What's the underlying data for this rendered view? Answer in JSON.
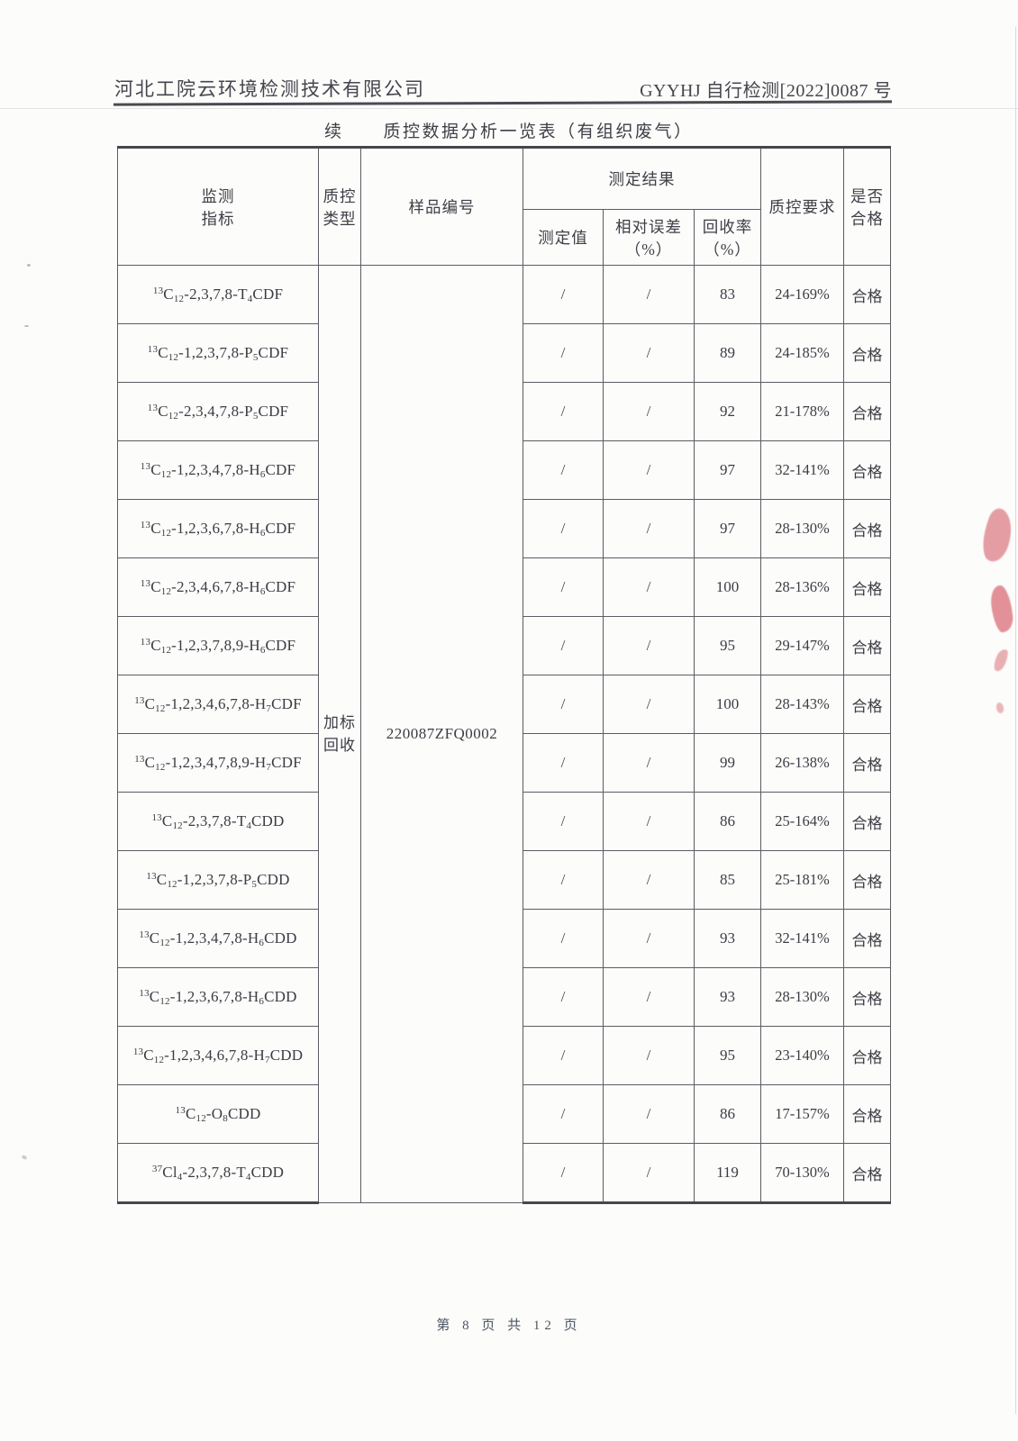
{
  "page": {
    "header": {
      "company": "河北工院云环境检测技术有限公司",
      "doc_number": "GYYHJ 自行检测[2022]0087 号"
    },
    "title": {
      "prefix": "续",
      "text": "质控数据分析一览表（有组织废气）"
    },
    "footer": {
      "page_info": "第 8 页 共 12 页"
    }
  },
  "table": {
    "headers": {
      "monitor_indicator": "监测\n指标",
      "qc_type": "质控\n类型",
      "sample_id": "样品编号",
      "result_group": "测定结果",
      "measured_value": "测定值",
      "relative_error": "相对误差\n（%）",
      "recovery_rate": "回收率\n（%）",
      "qc_requirement": "质控要求",
      "qualified": "是否\n合格"
    },
    "qc_type_value": "加标回收",
    "sample_id_value": "220087ZFQ0002",
    "rows": [
      {
        "analyte": "^13^C~12~-2,3,7,8-T~4~CDF",
        "measured": "/",
        "rel_err": "/",
        "recovery": "83",
        "requirement": "24-169%",
        "qualified": "合格"
      },
      {
        "analyte": "^13^C~12~-1,2,3,7,8-P~5~CDF",
        "measured": "/",
        "rel_err": "/",
        "recovery": "89",
        "requirement": "24-185%",
        "qualified": "合格"
      },
      {
        "analyte": "^13^C~12~-2,3,4,7,8-P~5~CDF",
        "measured": "/",
        "rel_err": "/",
        "recovery": "92",
        "requirement": "21-178%",
        "qualified": "合格"
      },
      {
        "analyte": "^13^C~12~-1,2,3,4,7,8-H~6~CDF",
        "measured": "/",
        "rel_err": "/",
        "recovery": "97",
        "requirement": "32-141%",
        "qualified": "合格"
      },
      {
        "analyte": "^13^C~12~-1,2,3,6,7,8-H~6~CDF",
        "measured": "/",
        "rel_err": "/",
        "recovery": "97",
        "requirement": "28-130%",
        "qualified": "合格"
      },
      {
        "analyte": "^13^C~12~-2,3,4,6,7,8-H~6~CDF",
        "measured": "/",
        "rel_err": "/",
        "recovery": "100",
        "requirement": "28-136%",
        "qualified": "合格"
      },
      {
        "analyte": "^13^C~12~-1,2,3,7,8,9-H~6~CDF",
        "measured": "/",
        "rel_err": "/",
        "recovery": "95",
        "requirement": "29-147%",
        "qualified": "合格"
      },
      {
        "analyte": "^13^C~12~-1,2,3,4,6,7,8-H~7~CDF",
        "measured": "/",
        "rel_err": "/",
        "recovery": "100",
        "requirement": "28-143%",
        "qualified": "合格"
      },
      {
        "analyte": "^13^C~12~-1,2,3,4,7,8,9-H~7~CDF",
        "measured": "/",
        "rel_err": "/",
        "recovery": "99",
        "requirement": "26-138%",
        "qualified": "合格"
      },
      {
        "analyte": "^13^C~12~-2,3,7,8-T~4~CDD",
        "measured": "/",
        "rel_err": "/",
        "recovery": "86",
        "requirement": "25-164%",
        "qualified": "合格"
      },
      {
        "analyte": "^13^C~12~-1,2,3,7,8-P~5~CDD",
        "measured": "/",
        "rel_err": "/",
        "recovery": "85",
        "requirement": "25-181%",
        "qualified": "合格"
      },
      {
        "analyte": "^13^C~12~-1,2,3,4,7,8-H~6~CDD",
        "measured": "/",
        "rel_err": "/",
        "recovery": "93",
        "requirement": "32-141%",
        "qualified": "合格"
      },
      {
        "analyte": "^13^C~12~-1,2,3,6,7,8-H~6~CDD",
        "measured": "/",
        "rel_err": "/",
        "recovery": "93",
        "requirement": "28-130%",
        "qualified": "合格"
      },
      {
        "analyte": "^13^C~12~-1,2,3,4,6,7,8-H~7~CDD",
        "measured": "/",
        "rel_err": "/",
        "recovery": "95",
        "requirement": "23-140%",
        "qualified": "合格"
      },
      {
        "analyte": "^13^C~12~-O~8~CDD",
        "measured": "/",
        "rel_err": "/",
        "recovery": "86",
        "requirement": "17-157%",
        "qualified": "合格"
      },
      {
        "analyte": "^37^Cl~4~-2,3,7,8-T~4~CDD",
        "measured": "/",
        "rel_err": "/",
        "recovery": "119",
        "requirement": "70-130%",
        "qualified": "合格"
      }
    ]
  },
  "colors": {
    "ink": "#3c3c44",
    "table_line": "#5c5c63",
    "stamp_red": "#dd7f86",
    "paper": "#fcfcfb"
  }
}
